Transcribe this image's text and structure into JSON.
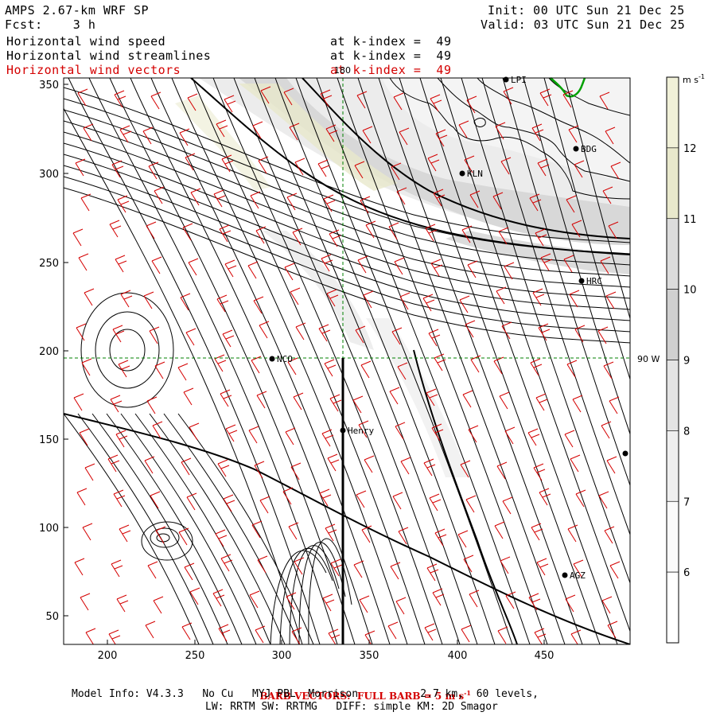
{
  "header": {
    "model_title": "AMPS 2.67-km WRF SP",
    "fcst": "Fcst:    3 h",
    "init": "Init: 00 UTC Sun 21 Dec 25",
    "valid": "Valid: 03 UTC Sun 21 Dec 25"
  },
  "fields": [
    {
      "name": "Horizontal wind speed",
      "level": "at k-index =  49",
      "color": "#000000"
    },
    {
      "name": "Horizontal wind streamlines",
      "level": "at k-index =  49",
      "color": "#000000"
    },
    {
      "name": "Horizontal wind vectors",
      "level": "at k-index =  49",
      "color": "#d40000"
    }
  ],
  "map": {
    "x_ticks": [
      "200",
      "250",
      "300",
      "350",
      "400",
      "450"
    ],
    "y_ticks": [
      "350",
      "300",
      "250",
      "200",
      "150",
      "100",
      "50"
    ],
    "meridian_label": "180",
    "parallel_label": "90 W",
    "stations": [
      {
        "id": "LPI",
        "label": "LPI"
      },
      {
        "id": "BDG",
        "label": "BDG"
      },
      {
        "id": "KLN",
        "label": "KLN"
      },
      {
        "id": "HRC",
        "label": "HRC"
      },
      {
        "id": "NCO",
        "label": "NCO"
      },
      {
        "id": "Henry",
        "label": "Henry"
      },
      {
        "id": "AGZ",
        "label": "AGZ"
      },
      {
        "id": "E",
        "label": ""
      }
    ],
    "coast_color": "#000000",
    "barb_color": "#d40000",
    "grid_color": "#008000"
  },
  "colorbar": {
    "unit": "m s",
    "unit_sup": "-1",
    "labels": [
      "12",
      "11",
      "10",
      "9",
      "8",
      "7",
      "6"
    ],
    "colors": [
      "#f0f0d8",
      "#e8e8cc",
      "#dcdcdc",
      "#d0d0d0",
      "#e4e4e4",
      "#efefef",
      "#fafafa",
      "#ffffff"
    ]
  },
  "footer": {
    "barb_note": "BARB VECTORS:  FULL BARB = 5 m s",
    "barb_note_sup": "-1",
    "model_info": "Model Info: V4.3.3   No Cu   MYJ PBL  Morrison          2.7 km,  60 levels,",
    "physics": "LW: RRTM SW: RRTMG   DIFF: simple KM: 2D Smagor"
  }
}
